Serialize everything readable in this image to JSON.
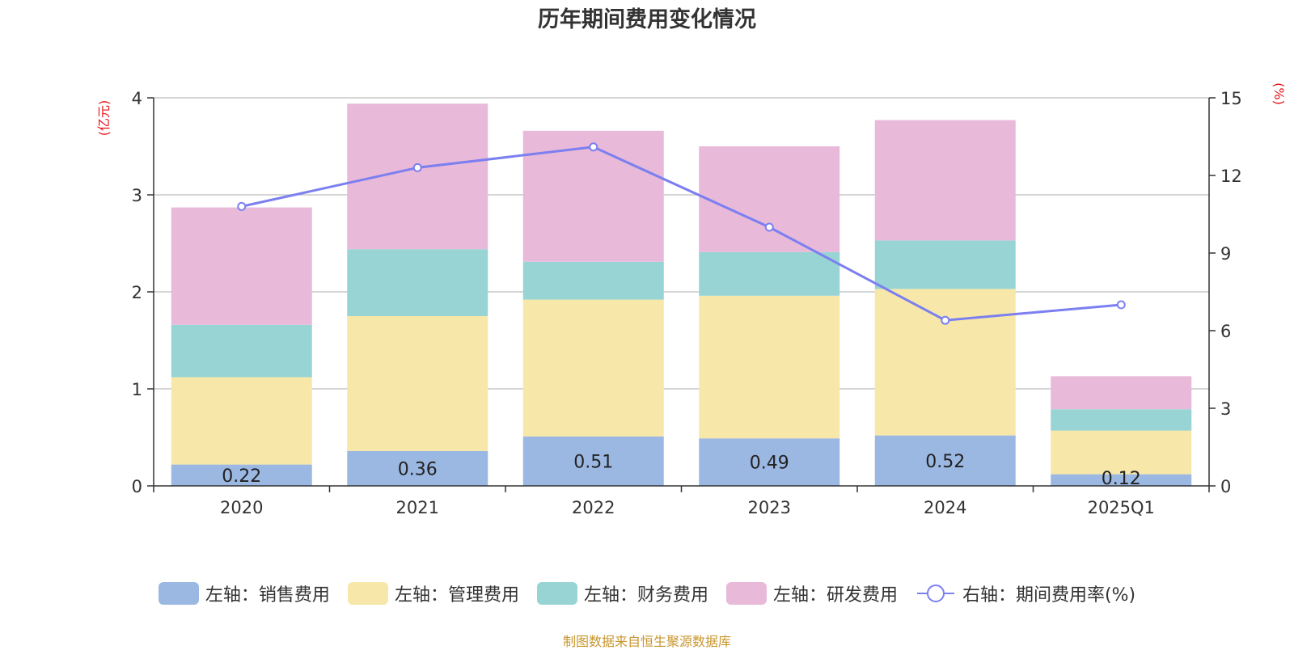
{
  "chart_data": {
    "type": "bar",
    "title": "历年期间费用变化情况",
    "categories": [
      "2020",
      "2021",
      "2022",
      "2023",
      "2024",
      "2025Q1"
    ],
    "left_axis": {
      "unit": "(亿元)",
      "ylim": [
        0,
        4
      ],
      "ticks": [
        "0",
        "1",
        "2",
        "3",
        "4"
      ]
    },
    "right_axis": {
      "unit": "(%)",
      "ylim": [
        0,
        15
      ],
      "ticks": [
        "0",
        "3",
        "6",
        "9",
        "12",
        "15"
      ]
    },
    "series": [
      {
        "name": "左轴：销售费用",
        "kind": "stacked-bar",
        "axis": "left",
        "color": "#9bb8e2",
        "values": [
          0.22,
          0.36,
          0.51,
          0.49,
          0.52,
          0.12
        ]
      },
      {
        "name": "左轴：管理费用",
        "kind": "stacked-bar",
        "axis": "left",
        "color": "#f7e7a8",
        "values": [
          0.9,
          1.39,
          1.41,
          1.47,
          1.51,
          0.45
        ]
      },
      {
        "name": "左轴：财务费用",
        "kind": "stacked-bar",
        "axis": "left",
        "color": "#98d4d4",
        "values": [
          0.54,
          0.69,
          0.39,
          0.45,
          0.5,
          0.22
        ]
      },
      {
        "name": "左轴：研发费用",
        "kind": "stacked-bar",
        "axis": "left",
        "color": "#e8b9d9",
        "values": [
          1.21,
          1.5,
          1.35,
          1.09,
          1.24,
          0.34
        ]
      },
      {
        "name": "右轴：期间费用率(%)",
        "kind": "line",
        "axis": "right",
        "color": "#7b7ff0",
        "values": [
          10.8,
          12.3,
          13.1,
          10.0,
          6.4,
          7.0
        ]
      }
    ],
    "data_labels": [
      "0.22",
      "0.36",
      "0.51",
      "0.49",
      "0.52",
      "0.12"
    ],
    "legend_position": "bottom",
    "grid": true
  },
  "footer": "制图数据来自恒生聚源数据库"
}
